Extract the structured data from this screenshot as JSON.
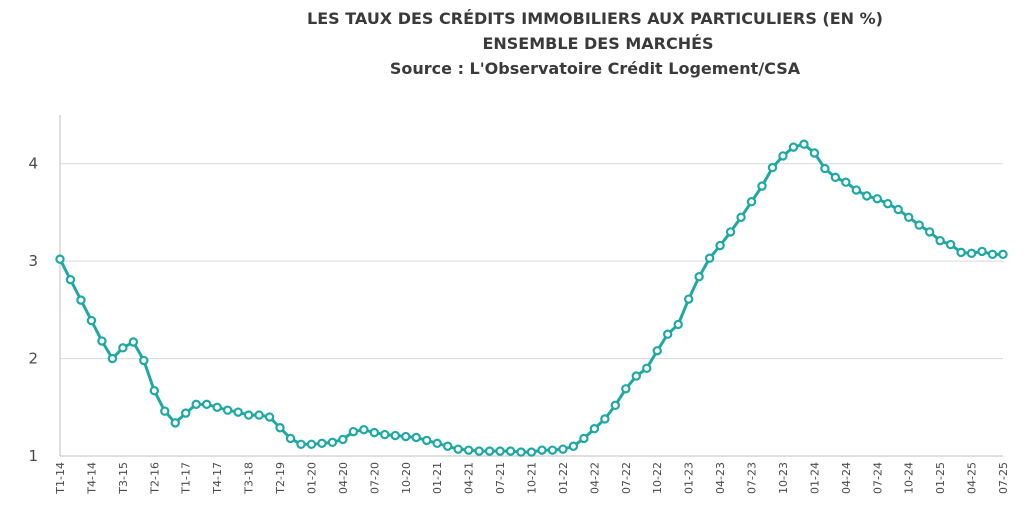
{
  "chart_data": {
    "type": "line",
    "title_lines": [
      "LES TAUX DES CRÉDITS IMMOBILIERS AUX PARTICULIERS (EN %)",
      "ENSEMBLE DES MARCHÉS",
      "Source : L'Observatoire Crédit Logement/CSA"
    ],
    "xlabel": "",
    "ylabel": "",
    "ylim": [
      1,
      4.5
    ],
    "yticks": [
      1,
      2,
      3,
      4
    ],
    "grid": true,
    "legend": "none",
    "color": "#1fa8a4",
    "x_tick_labels": [
      "T1-14",
      "T4-14",
      "T3-15",
      "T2-16",
      "T1-17",
      "T4-17",
      "T3-18",
      "T2-19",
      "01-20",
      "04-20",
      "07-20",
      "10-20",
      "01-21",
      "04-21",
      "07-21",
      "10-21",
      "01-22",
      "04-22",
      "07-22",
      "10-22",
      "01-23",
      "04-23",
      "07-23",
      "10-23",
      "01-24",
      "04-24",
      "07-24",
      "10-24",
      "01-25",
      "04-25",
      "07-25"
    ],
    "series": [
      {
        "name": "",
        "values": [
          3.02,
          2.81,
          2.6,
          2.39,
          2.18,
          2.0,
          2.11,
          2.17,
          1.98,
          1.67,
          1.46,
          1.34,
          1.44,
          1.53,
          1.53,
          1.5,
          1.47,
          1.45,
          1.42,
          1.42,
          1.4,
          1.29,
          1.18,
          1.12,
          1.12,
          1.13,
          1.14,
          1.17,
          1.25,
          1.27,
          1.24,
          1.22,
          1.21,
          1.2,
          1.19,
          1.16,
          1.13,
          1.1,
          1.07,
          1.06,
          1.05,
          1.05,
          1.05,
          1.05,
          1.04,
          1.04,
          1.06,
          1.06,
          1.07,
          1.1,
          1.18,
          1.28,
          1.38,
          1.52,
          1.69,
          1.82,
          1.9,
          2.08,
          2.25,
          2.35,
          2.61,
          2.84,
          3.03,
          3.16,
          3.3,
          3.45,
          3.61,
          3.77,
          3.96,
          4.08,
          4.17,
          4.2,
          4.11,
          3.95,
          3.86,
          3.81,
          3.73,
          3.67,
          3.64,
          3.59,
          3.53,
          3.45,
          3.37,
          3.3,
          3.21,
          3.17,
          3.09,
          3.08,
          3.1,
          3.07,
          3.07
        ]
      }
    ]
  }
}
